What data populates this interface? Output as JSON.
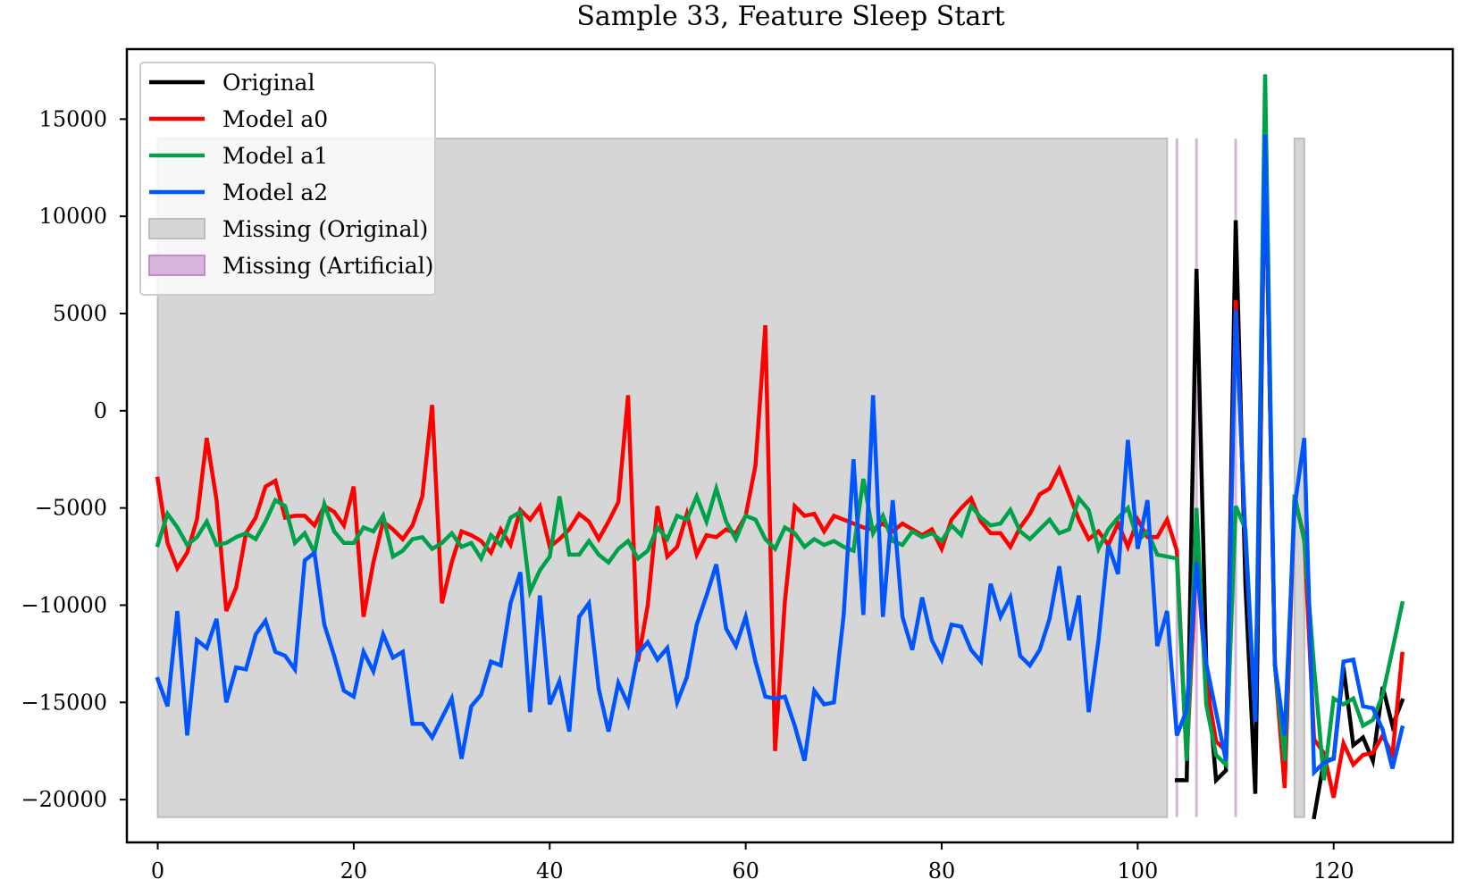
{
  "chart_data": {
    "type": "line",
    "title": "Sample 33, Feature Sleep Start",
    "xlabel": "",
    "ylabel": "",
    "xlim": [
      -3.15,
      132.15
    ],
    "ylim": [
      -22200,
      18600
    ],
    "x_ticks": [
      0,
      20,
      40,
      60,
      80,
      100,
      120
    ],
    "x_tick_labels": [
      "0",
      "20",
      "40",
      "60",
      "80",
      "100",
      "120"
    ],
    "y_ticks": [
      -20000,
      -15000,
      -10000,
      -5000,
      0,
      5000,
      10000,
      15000
    ],
    "y_tick_labels": [
      "−20000",
      "−15000",
      "−10000",
      "−5000",
      "0",
      "5000",
      "10000",
      "15000"
    ],
    "grid": false,
    "legend_position": "top-left",
    "colors": {
      "original": "#000000",
      "model_a0": "#ff0000",
      "model_a1": "#00a14b",
      "model_a2": "#0055ff",
      "missing_original": "#d6d6d6",
      "missing_original_edge": "#bdbdbd",
      "missing_artificial": "#d7b4dc"
    },
    "missing_original_spans": [
      [
        0,
        103
      ],
      [
        116,
        117
      ]
    ],
    "missing_artificial_x": [
      104,
      106,
      110
    ],
    "missing_range": [
      -20900,
      14000
    ],
    "legend": [
      {
        "label": "Original",
        "kind": "line",
        "color": "#000000"
      },
      {
        "label": "Model a0",
        "kind": "line",
        "color": "#ff0000"
      },
      {
        "label": "Model a1",
        "kind": "line",
        "color": "#00a14b"
      },
      {
        "label": "Model a2",
        "kind": "line",
        "color": "#0055ff"
      },
      {
        "label": "Missing (Original)",
        "kind": "patch",
        "color": "#d6d6d6",
        "edge": "#bdbdbd"
      },
      {
        "label": "Missing (Artificial)",
        "kind": "patch",
        "color": "#d7b4dc",
        "edge": "#c48ccc"
      }
    ],
    "series": [
      {
        "name": "Original",
        "color": "#000000",
        "segments": [
          {
            "x": [
              104,
              105,
              106,
              107,
              108,
              109,
              110,
              111,
              112,
              113,
              114,
              115
            ],
            "y": [
              -19000,
              -19000,
              7300,
              -13000,
              -19000,
              -18500,
              9800,
              -9000,
              -19700,
              14000,
              -13000,
              -19000
            ]
          },
          {
            "x": [
              118,
              119,
              120,
              121,
              122,
              123,
              124,
              125,
              126,
              127
            ],
            "y": [
              -20900,
              -18000,
              -17900,
              -13200,
              -17200,
              -16800,
              -18000,
              -14200,
              -16200,
              -14900
            ]
          }
        ]
      },
      {
        "name": "Model a0",
        "color": "#ff0000",
        "segments": [
          {
            "x": [
              0,
              1,
              2,
              3,
              4,
              5,
              6,
              7,
              8,
              9,
              10,
              11,
              12,
              13,
              14,
              15,
              16,
              17,
              18,
              19,
              20,
              21,
              22,
              23,
              24,
              25,
              26,
              27,
              28,
              29,
              30,
              31,
              32,
              33,
              34,
              35,
              36,
              37,
              38,
              39,
              40,
              41,
              42,
              43,
              44,
              45,
              46,
              47,
              48,
              49,
              50,
              51,
              52,
              53,
              54,
              55,
              56,
              57,
              58,
              59,
              60,
              61,
              62,
              63,
              64,
              65,
              66,
              67,
              68,
              69,
              70,
              71,
              72,
              73,
              74,
              75,
              76,
              77,
              78,
              79,
              80,
              81,
              82,
              83,
              84,
              85,
              86,
              87,
              88,
              89,
              90,
              91,
              92,
              93,
              94,
              95,
              96,
              97,
              98,
              99,
              100,
              101,
              102,
              103,
              104,
              105,
              106,
              107,
              108,
              109,
              110,
              111,
              112,
              113,
              114,
              115,
              116,
              117,
              118,
              119,
              120,
              121,
              122,
              123,
              124,
              125,
              126,
              127
            ],
            "y": [
              -3500,
              -6800,
              -8100,
              -7300,
              -5600,
              -1400,
              -4600,
              -10300,
              -9100,
              -6300,
              -5500,
              -3900,
              -3600,
              -5500,
              -5400,
              -5400,
              -5900,
              -4900,
              -5200,
              -5900,
              -3900,
              -10600,
              -7800,
              -5700,
              -6100,
              -6600,
              -5900,
              -4400,
              300,
              -9900,
              -7800,
              -6200,
              -6400,
              -6700,
              -7300,
              -6100,
              -6900,
              -5100,
              -5600,
              -4900,
              -7000,
              -6600,
              -6100,
              -5300,
              -5700,
              -6600,
              -5700,
              -4700,
              800,
              -12900,
              -10000,
              -4900,
              -7500,
              -7000,
              -5300,
              -7400,
              -6400,
              -6500,
              -6100,
              -6300,
              -5400,
              -2800,
              4400,
              -17500,
              -9800,
              -4900,
              -5400,
              -5300,
              -6200,
              -5400,
              -5600,
              -5800,
              -6000,
              -6100,
              -5800,
              -6200,
              -5800,
              -6100,
              -6400,
              -6100,
              -7100,
              -5600,
              -5000,
              -4500,
              -5700,
              -6300,
              -6300,
              -7000,
              -6000,
              -5300,
              -4300,
              -4000,
              -3000,
              -4300,
              -5600,
              -6600,
              -6200,
              -6900,
              -5800,
              -7000,
              -5600,
              -6500,
              -6500,
              -5600,
              -7200,
              -18000,
              -7400,
              -14000,
              -17000,
              -17500,
              5700,
              -6800,
              -15900,
              14000,
              -13000,
              -19400,
              -4500,
              -6500,
              -16900,
              -17600,
              -19900,
              -17100,
              -18200,
              -17700,
              -17600,
              -16700,
              -17700,
              -12500
            ]
          }
        ]
      },
      {
        "name": "Model a1",
        "color": "#00a14b",
        "segments": [
          {
            "x": [
              0,
              1,
              2,
              3,
              4,
              5,
              6,
              7,
              8,
              9,
              10,
              11,
              12,
              13,
              14,
              15,
              16,
              17,
              18,
              19,
              20,
              21,
              22,
              23,
              24,
              25,
              26,
              27,
              28,
              29,
              30,
              31,
              32,
              33,
              34,
              35,
              36,
              37,
              38,
              39,
              40,
              41,
              42,
              43,
              44,
              45,
              46,
              47,
              48,
              49,
              50,
              51,
              52,
              53,
              54,
              55,
              56,
              57,
              58,
              59,
              60,
              61,
              62,
              63,
              64,
              65,
              66,
              67,
              68,
              69,
              70,
              71,
              72,
              73,
              74,
              75,
              76,
              77,
              78,
              79,
              80,
              81,
              82,
              83,
              84,
              85,
              86,
              87,
              88,
              89,
              90,
              91,
              92,
              93,
              94,
              95,
              96,
              97,
              98,
              99,
              100,
              101,
              102,
              103,
              104,
              105,
              106,
              107,
              108,
              109,
              110,
              111,
              112,
              113,
              114,
              115,
              116,
              117,
              118,
              119,
              120,
              121,
              122,
              123,
              124,
              125,
              126,
              127
            ],
            "y": [
              -6900,
              -5300,
              -6000,
              -6900,
              -6500,
              -5700,
              -6900,
              -6800,
              -6500,
              -6300,
              -6600,
              -5700,
              -4600,
              -4900,
              -6800,
              -6300,
              -7300,
              -4800,
              -6200,
              -6800,
              -6800,
              -6000,
              -6200,
              -5400,
              -7500,
              -7200,
              -6600,
              -6500,
              -7100,
              -6800,
              -6300,
              -7000,
              -6800,
              -7600,
              -6400,
              -6900,
              -5500,
              -5200,
              -9300,
              -8200,
              -7500,
              -4400,
              -7400,
              -7400,
              -6700,
              -7400,
              -7800,
              -7100,
              -6700,
              -7600,
              -7200,
              -6000,
              -6600,
              -5400,
              -5600,
              -4400,
              -5700,
              -4000,
              -5700,
              -6600,
              -5400,
              -5600,
              -6600,
              -7100,
              -6000,
              -6300,
              -7000,
              -6600,
              -6900,
              -6700,
              -7000,
              -7200,
              -3500,
              -6300,
              -5400,
              -6700,
              -6900,
              -6200,
              -6500,
              -6300,
              -6700,
              -5900,
              -6400,
              -4900,
              -5500,
              -5900,
              -5800,
              -5100,
              -6200,
              -6600,
              -6100,
              -5600,
              -6300,
              -6100,
              -4500,
              -5100,
              -7100,
              -6100,
              -5500,
              -5000,
              -6700,
              -6200,
              -7400,
              -7500,
              -7600,
              -18000,
              -5000,
              -15100,
              -17700,
              -18200,
              -4900,
              -6100,
              -15800,
              17300,
              -13100,
              -18000,
              -4300,
              -6700,
              -13200,
              -19000,
              -14800,
              -15100,
              -14800,
              -16200,
              -15900,
              -14600,
              -12300,
              -9900
            ]
          }
        ]
      },
      {
        "name": "Model a2",
        "color": "#0055ff",
        "segments": [
          {
            "x": [
              0,
              1,
              2,
              3,
              4,
              5,
              6,
              7,
              8,
              9,
              10,
              11,
              12,
              13,
              14,
              15,
              16,
              17,
              18,
              19,
              20,
              21,
              22,
              23,
              24,
              25,
              26,
              27,
              28,
              29,
              30,
              31,
              32,
              33,
              34,
              35,
              36,
              37,
              38,
              39,
              40,
              41,
              42,
              43,
              44,
              45,
              46,
              47,
              48,
              49,
              50,
              51,
              52,
              53,
              54,
              55,
              56,
              57,
              58,
              59,
              60,
              61,
              62,
              63,
              64,
              65,
              66,
              67,
              68,
              69,
              70,
              71,
              72,
              73,
              74,
              75,
              76,
              77,
              78,
              79,
              80,
              81,
              82,
              83,
              84,
              85,
              86,
              87,
              88,
              89,
              90,
              91,
              92,
              93,
              94,
              95,
              96,
              97,
              98,
              99,
              100,
              101,
              102,
              103,
              104,
              105,
              106,
              107,
              108,
              109,
              110,
              111,
              112,
              113,
              114,
              115,
              116,
              117,
              118,
              119,
              120,
              121,
              122,
              123,
              124,
              125,
              126,
              127
            ],
            "y": [
              -13800,
              -15200,
              -10300,
              -16700,
              -11800,
              -12200,
              -10700,
              -15000,
              -13200,
              -13300,
              -11500,
              -10800,
              -12400,
              -12600,
              -13300,
              -7700,
              -7300,
              -11000,
              -12600,
              -14400,
              -14700,
              -12400,
              -13400,
              -11500,
              -12700,
              -12400,
              -16100,
              -16100,
              -16800,
              -15800,
              -14800,
              -17900,
              -15200,
              -14600,
              -12900,
              -13100,
              -9900,
              -8300,
              -15500,
              -9500,
              -15100,
              -13900,
              -16500,
              -10600,
              -9900,
              -14300,
              -16500,
              -14000,
              -15100,
              -12500,
              -11900,
              -12800,
              -12200,
              -15000,
              -13700,
              -11000,
              -9500,
              -7900,
              -11200,
              -12100,
              -10600,
              -12900,
              -14700,
              -14800,
              -14700,
              -16200,
              -18000,
              -14400,
              -15100,
              -15000,
              -10500,
              -2500,
              -10500,
              800,
              -10600,
              -4600,
              -10600,
              -12300,
              -9600,
              -11800,
              -12800,
              -11000,
              -11100,
              -12300,
              -12900,
              -8900,
              -10600,
              -9600,
              -12600,
              -13100,
              -12300,
              -10700,
              -8000,
              -11800,
              -9500,
              -15500,
              -11800,
              -6900,
              -8400,
              -1500,
              -7100,
              -4600,
              -12100,
              -10300,
              -16700,
              -15400,
              -7800,
              -13000,
              -15500,
              -18000,
              5200,
              -6600,
              -16000,
              14200,
              -13000,
              -16700,
              -5000,
              -1400,
              -18600,
              -18100,
              -17900,
              -12900,
              -12800,
              -15200,
              -15300,
              -16400,
              -18400,
              -16300
            ]
          }
        ]
      }
    ]
  }
}
